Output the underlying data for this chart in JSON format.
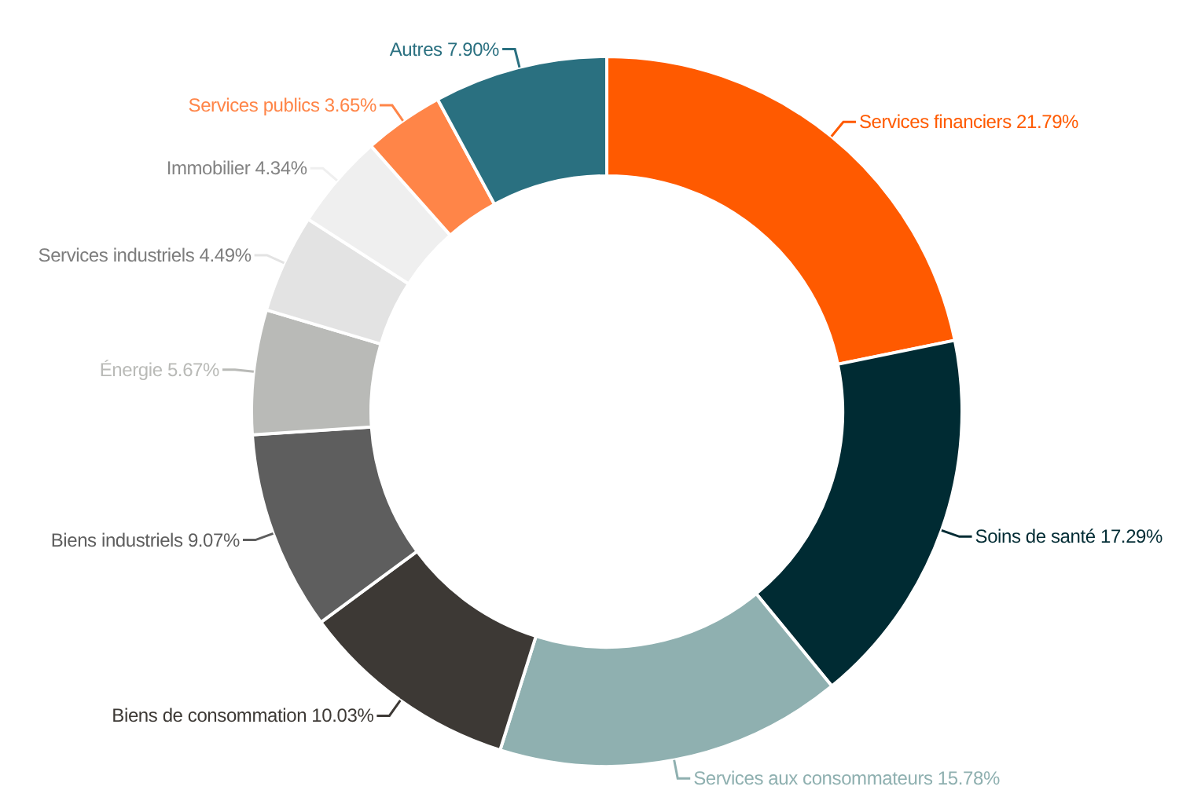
{
  "chart_data": {
    "type": "donut",
    "categories": [
      "Services financiers",
      "Soins de santé",
      "Services aux consommateurs",
      "Biens de consommation",
      "Biens industriels",
      "Énergie",
      "Services industriels",
      "Immobilier",
      "Services publics",
      "Autres"
    ],
    "values": [
      21.79,
      17.29,
      15.78,
      10.03,
      9.07,
      5.67,
      4.49,
      4.34,
      3.65,
      7.9
    ],
    "value_labels": [
      "21.79%",
      "17.29%",
      "15.78%",
      "10.03%",
      "9.07%",
      "5.67%",
      "4.49%",
      "4.34%",
      "3.65%",
      "7.90%"
    ],
    "colors": [
      "#ff5a00",
      "#002b33",
      "#8fb0b0",
      "#3d3935",
      "#5e5e5e",
      "#b9bab7",
      "#e3e3e3",
      "#efefef",
      "#ff8548",
      "#2a7080"
    ],
    "legend": false
  }
}
